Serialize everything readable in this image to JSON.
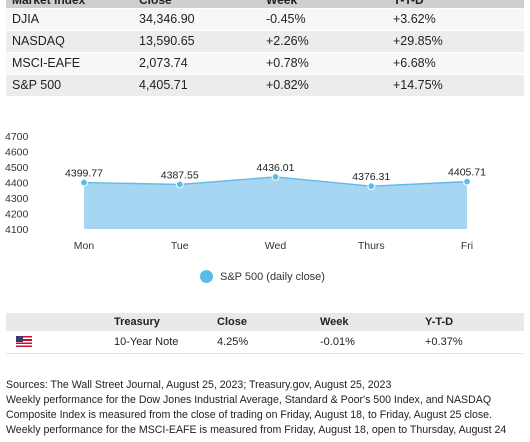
{
  "market_table": {
    "headers": [
      "Market Index",
      "Close",
      "Week",
      "Y-T-D"
    ],
    "rows": [
      [
        "DJIA",
        "34,346.90",
        "-0.45%",
        "+3.62%"
      ],
      [
        "NASDAQ",
        "13,590.65",
        "+2.26%",
        "+29.85%"
      ],
      [
        "MSCI-EAFE",
        "2,073.74",
        "+0.78%",
        "+6.68%"
      ],
      [
        "S&P 500",
        "4,405.71",
        "+0.82%",
        "+14.75%"
      ]
    ]
  },
  "chart_data": {
    "type": "area",
    "categories": [
      "Mon",
      "Tue",
      "Wed",
      "Thurs",
      "Fri"
    ],
    "series": [
      {
        "name": "S&P 500 (daily close)",
        "values": [
          4399.77,
          4387.55,
          4436.01,
          4376.31,
          4405.71
        ]
      }
    ],
    "data_labels": [
      "4399.77",
      "4387.55",
      "4436.01",
      "4376.31",
      "4405.71"
    ],
    "yticks": [
      4100,
      4200,
      4300,
      4400,
      4500,
      4600,
      4700
    ],
    "ylim": [
      4100,
      4700
    ],
    "grid": false,
    "legend_position": "bottom",
    "color": "#5dbbe7",
    "fill_color": "#a6d6f1"
  },
  "legend": {
    "label": "S&P 500 (daily close)"
  },
  "treasury_table": {
    "headers": [
      "",
      "Treasury",
      "Close",
      "Week",
      "Y-T-D"
    ],
    "row": {
      "flag_icon": "us-flag-icon",
      "name": "10-Year Note",
      "close": "4.25%",
      "week": "-0.01%",
      "ytd": "+0.37%"
    }
  },
  "notes": {
    "line1": "Sources: The Wall Street Journal, August 25, 2023; Treasury.gov, August 25, 2023",
    "line2": "Weekly performance for the Dow Jones Industrial Average, Standard & Poor's 500 Index, and NASDAQ",
    "line3": "Composite Index is measured from the close of trading on Friday, August 18, to Friday, August 25 close.",
    "line4": "Weekly performance for the MSCI-EAFE is measured from Friday, August 18, open to Thursday, August 24"
  }
}
